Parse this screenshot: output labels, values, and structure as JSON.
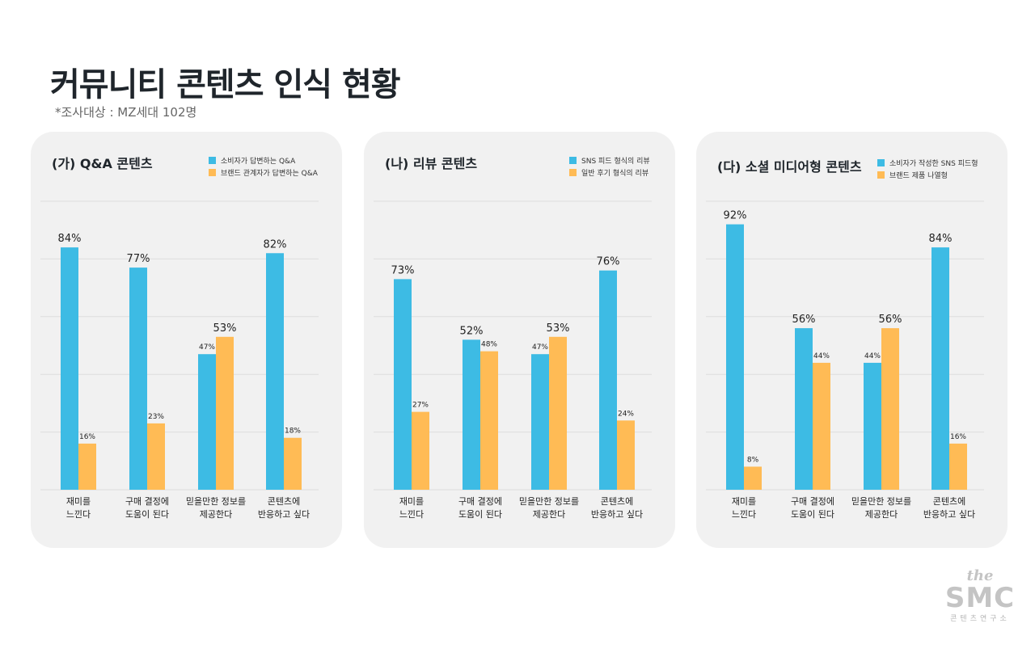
{
  "title": "커뮤니티 콘텐츠 인식 현황",
  "subtitle": "*조사대상 : MZ세대 102명",
  "colors": {
    "blue": "#3dbbe4",
    "orange": "#ffbb55",
    "grid": "#dddddd"
  },
  "categories": [
    "재미를\n느낀다",
    "구매 결정에\n도움이 된다",
    "믿을만한 정보를\n제공한다",
    "콘텐츠에\n반응하고 싶다"
  ],
  "logo": {
    "line1": "the",
    "line2": "SMC",
    "line3": "콘텐츠연구소"
  },
  "chart_data": [
    {
      "type": "bar",
      "title": "(가) Q&A 콘텐츠",
      "categories": [
        "재미를\n느낀다",
        "구매 결정에\n도움이 된다",
        "믿을만한 정보를\n제공한다",
        "콘텐츠에\n반응하고 싶다"
      ],
      "series": [
        {
          "name": "소비자가 답변하는 Q&A",
          "values": [
            84,
            77,
            47,
            82
          ]
        },
        {
          "name": "브랜드 관계자가 답변하는 Q&A",
          "values": [
            16,
            23,
            53,
            18
          ]
        }
      ],
      "ylim": [
        0,
        100
      ],
      "grid": true,
      "legend": "top-right"
    },
    {
      "type": "bar",
      "title": "(나) 리뷰 콘텐츠",
      "categories": [
        "재미를\n느낀다",
        "구매 결정에\n도움이 된다",
        "믿을만한 정보를\n제공한다",
        "콘텐츠에\n반응하고 싶다"
      ],
      "series": [
        {
          "name": "SNS 피드 형식의 리뷰",
          "values": [
            73,
            52,
            47,
            76
          ]
        },
        {
          "name": "일반 후기 형식의 리뷰",
          "values": [
            27,
            48,
            53,
            24
          ]
        }
      ],
      "ylim": [
        0,
        100
      ],
      "grid": true,
      "legend": "top-right"
    },
    {
      "type": "bar",
      "title": "(다) 소셜 미디어형 콘텐츠",
      "categories": [
        "재미를\n느낀다",
        "구매 결정에\n도움이 된다",
        "믿을만한 정보를\n제공한다",
        "콘텐츠에\n반응하고 싶다"
      ],
      "series": [
        {
          "name": "소비자가 작성한 SNS 피드형",
          "values": [
            92,
            56,
            44,
            84
          ]
        },
        {
          "name": "브랜드 제품 나열형",
          "values": [
            8,
            44,
            56,
            16
          ]
        }
      ],
      "ylim": [
        0,
        100
      ],
      "grid": true,
      "legend": "top-right"
    }
  ]
}
